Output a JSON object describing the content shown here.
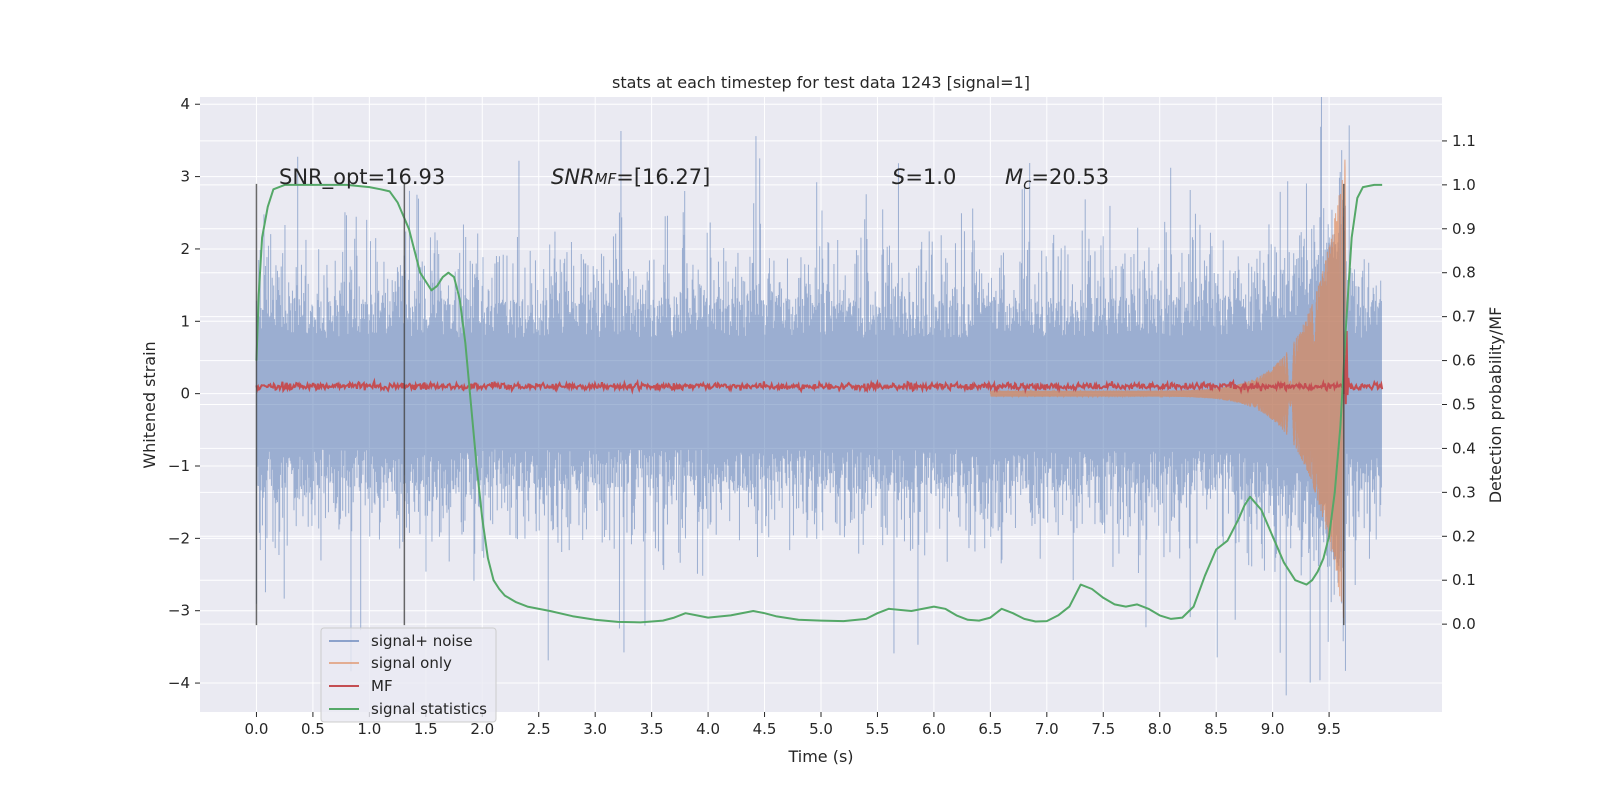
{
  "chart_data": {
    "type": "line",
    "title": "stats at each timestep for test data 1243 [signal=1]",
    "xlabel": "Time (s)",
    "ylabel": "Whitened strain",
    "ylabel_right": "Detection probability/MF",
    "xlim": [
      -0.5,
      10.5
    ],
    "ylim": [
      -4.4,
      4.1
    ],
    "ylim_right": [
      -0.2,
      1.2
    ],
    "x_ticks": [
      "0.0",
      "0.5",
      "1.0",
      "1.5",
      "2.0",
      "2.5",
      "3.0",
      "3.5",
      "4.0",
      "4.5",
      "5.0",
      "5.5",
      "6.0",
      "6.5",
      "7.0",
      "7.5",
      "8.0",
      "8.5",
      "9.0",
      "9.5"
    ],
    "y_ticks": [
      "−4",
      "−3",
      "−2",
      "−1",
      "0",
      "1",
      "2",
      "3",
      "4"
    ],
    "y_ticks_right": [
      "0.0",
      "0.1",
      "0.2",
      "0.3",
      "0.4",
      "0.5",
      "0.6",
      "0.7",
      "0.8",
      "0.9",
      "1.0",
      "1.1"
    ],
    "grid": true,
    "legend_position": "lower-left",
    "annotations": {
      "snr_opt": "SNR_opt=16.93",
      "snr_mf_italic": "SNR",
      "snr_mf_sub": "MF",
      "snr_mf_value": "=[16.27]",
      "s_italic": "S",
      "s_value": "=1.0",
      "mc_italic": "M",
      "mc_sub": "c",
      "mc_value": "=20.53"
    },
    "vertical_lines": [
      0.0,
      1.31,
      9.63
    ],
    "series": [
      {
        "name": "signal+ noise",
        "color": "#4c72b0",
        "axis": "left",
        "kind": "noise",
        "x_range": [
          0.0,
          9.97
        ],
        "core_amplitude": 1.1,
        "peak_max": 3.75,
        "peak_min": -4.0
      },
      {
        "name": "signal only",
        "color": "#dd8452",
        "axis": "left",
        "kind": "chirp",
        "start": 6.5,
        "end": 9.65,
        "max_amplitude": 3.3
      },
      {
        "name": "MF",
        "color": "#c44e52",
        "axis": "left",
        "kind": "mf",
        "x_range": [
          0.0,
          9.97
        ],
        "baseline": 0.1,
        "spike_x": 9.65,
        "spike_max": 1.0
      },
      {
        "name": "signal statistics",
        "color": "#55a868",
        "axis": "right",
        "x": [
          0.0,
          0.02,
          0.05,
          0.1,
          0.15,
          0.25,
          0.4,
          0.6,
          0.8,
          1.0,
          1.1,
          1.18,
          1.25,
          1.3,
          1.35,
          1.4,
          1.45,
          1.5,
          1.55,
          1.6,
          1.65,
          1.7,
          1.75,
          1.8,
          1.85,
          1.9,
          1.95,
          2.0,
          2.05,
          2.1,
          2.15,
          2.2,
          2.3,
          2.4,
          2.6,
          2.8,
          3.0,
          3.2,
          3.4,
          3.6,
          3.7,
          3.8,
          3.9,
          4.0,
          4.2,
          4.4,
          4.5,
          4.6,
          4.8,
          5.0,
          5.2,
          5.4,
          5.5,
          5.6,
          5.8,
          6.0,
          6.1,
          6.2,
          6.3,
          6.4,
          6.5,
          6.6,
          6.7,
          6.8,
          6.9,
          7.0,
          7.1,
          7.2,
          7.3,
          7.4,
          7.5,
          7.6,
          7.7,
          7.8,
          7.9,
          8.0,
          8.1,
          8.2,
          8.3,
          8.4,
          8.5,
          8.6,
          8.7,
          8.75,
          8.8,
          8.9,
          9.0,
          9.1,
          9.2,
          9.3,
          9.35,
          9.4,
          9.45,
          9.5,
          9.55,
          9.6,
          9.65,
          9.7,
          9.75,
          9.8,
          9.9,
          9.97
        ],
        "values": [
          0.6,
          0.75,
          0.88,
          0.95,
          0.99,
          1.0,
          1.0,
          1.0,
          1.0,
          0.995,
          0.99,
          0.985,
          0.96,
          0.93,
          0.9,
          0.85,
          0.8,
          0.78,
          0.76,
          0.77,
          0.79,
          0.8,
          0.79,
          0.74,
          0.64,
          0.5,
          0.36,
          0.24,
          0.15,
          0.1,
          0.08,
          0.065,
          0.05,
          0.04,
          0.03,
          0.018,
          0.01,
          0.005,
          0.004,
          0.008,
          0.015,
          0.025,
          0.02,
          0.015,
          0.02,
          0.03,
          0.025,
          0.018,
          0.01,
          0.008,
          0.007,
          0.012,
          0.025,
          0.035,
          0.03,
          0.04,
          0.035,
          0.02,
          0.01,
          0.008,
          0.015,
          0.035,
          0.025,
          0.012,
          0.006,
          0.007,
          0.02,
          0.04,
          0.09,
          0.08,
          0.06,
          0.045,
          0.04,
          0.045,
          0.035,
          0.02,
          0.012,
          0.015,
          0.04,
          0.11,
          0.17,
          0.19,
          0.24,
          0.27,
          0.29,
          0.26,
          0.2,
          0.14,
          0.1,
          0.09,
          0.1,
          0.12,
          0.15,
          0.2,
          0.3,
          0.45,
          0.68,
          0.88,
          0.97,
          0.995,
          1.0,
          1.0
        ]
      }
    ]
  }
}
